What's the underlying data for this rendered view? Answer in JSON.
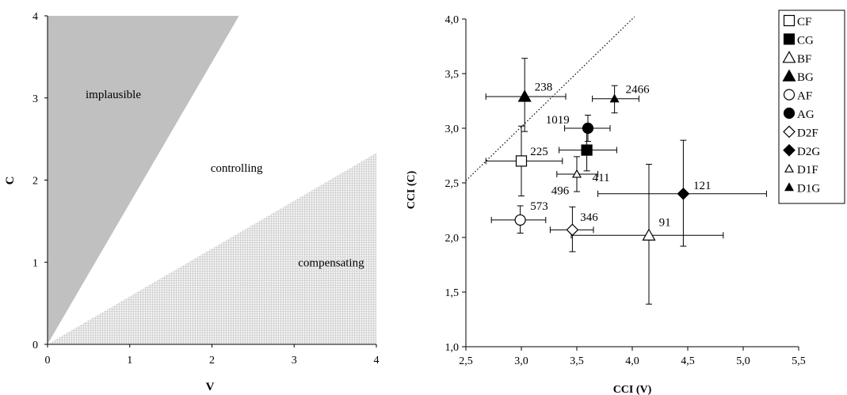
{
  "chart_data": [
    {
      "type": "area",
      "xlabel": "V",
      "ylabel": "C",
      "xlim": [
        0,
        4
      ],
      "ylim": [
        0,
        4
      ],
      "x_ticks": [
        "0",
        "1",
        "2",
        "3",
        "4"
      ],
      "y_ticks": [
        "0",
        "1",
        "2",
        "3",
        "4"
      ],
      "regions": [
        {
          "label": "implausible",
          "fill": "#c0c0c0",
          "polygon": [
            [
              0,
              0
            ],
            [
              2.33,
              4
            ],
            [
              0,
              4
            ]
          ]
        },
        {
          "label": "controlling",
          "fill": "#ffffff",
          "polygon": [
            [
              0,
              0
            ],
            [
              4,
              2.33
            ],
            [
              4,
              4
            ],
            [
              2.33,
              4
            ]
          ]
        },
        {
          "label": "compensating",
          "fill": "#e2e2e2",
          "polygon": [
            [
              0,
              0
            ],
            [
              4,
              0
            ],
            [
              4,
              2.33
            ]
          ]
        }
      ],
      "region_label_positions": [
        [
          0.8,
          3.0
        ],
        [
          2.3,
          2.1
        ],
        [
          3.45,
          0.95
        ]
      ]
    },
    {
      "type": "scatter",
      "xlabel": "CCI (V)",
      "ylabel": "CCI (C)",
      "xlim": [
        2.5,
        5.5
      ],
      "ylim": [
        1.0,
        4.0
      ],
      "x_ticks": [
        "2,5",
        "3,0",
        "3,5",
        "4,0",
        "4,5",
        "5,0",
        "5,5"
      ],
      "y_ticks": [
        "1,0",
        "1,5",
        "2,0",
        "2,5",
        "3,0",
        "3,5",
        "4,0"
      ],
      "legend_position": "top-right",
      "reference_line": {
        "style": "dotted",
        "points": [
          [
            2.5,
            2.52
          ],
          [
            4.02,
            4.02
          ]
        ]
      },
      "series": [
        {
          "name": "CF",
          "marker": "square-open",
          "x": 3.0,
          "y": 2.7,
          "xerr": [
            2.68,
            3.37
          ],
          "yerr": [
            2.38,
            3.02
          ],
          "label": "225",
          "label_pos": [
            3.08,
            2.79
          ]
        },
        {
          "name": "CG",
          "marker": "square-filled",
          "x": 3.59,
          "y": 2.8,
          "xerr": [
            3.34,
            3.86
          ],
          "yerr": [
            2.61,
            3.0
          ],
          "label": "411",
          "label_pos": [
            3.64,
            2.55
          ]
        },
        {
          "name": "BF",
          "marker": "triangle-open",
          "x": 4.15,
          "y": 2.02,
          "xerr": [
            3.45,
            4.82
          ],
          "yerr": [
            1.39,
            2.67
          ],
          "label": "91",
          "label_pos": [
            4.24,
            2.14
          ]
        },
        {
          "name": "BG",
          "marker": "triangle-filled",
          "x": 3.03,
          "y": 3.29,
          "xerr": [
            2.68,
            3.4
          ],
          "yerr": [
            2.97,
            3.64
          ],
          "label": "238",
          "label_pos": [
            3.12,
            3.38
          ]
        },
        {
          "name": "AF",
          "marker": "circle-open",
          "x": 2.99,
          "y": 2.16,
          "xerr": [
            2.73,
            3.22
          ],
          "yerr": [
            2.04,
            2.29
          ],
          "label": "573",
          "label_pos": [
            3.08,
            2.29
          ]
        },
        {
          "name": "AG",
          "marker": "circle-filled",
          "x": 3.6,
          "y": 3.0,
          "xerr": [
            3.39,
            3.8
          ],
          "yerr": [
            2.88,
            3.12
          ],
          "label": "1019",
          "label_pos": [
            3.22,
            3.08
          ]
        },
        {
          "name": "D2F",
          "marker": "diamond-open",
          "x": 3.46,
          "y": 2.07,
          "xerr": [
            3.26,
            3.65
          ],
          "yerr": [
            1.87,
            2.28
          ],
          "label": "346",
          "label_pos": [
            3.53,
            2.19
          ]
        },
        {
          "name": "D2G",
          "marker": "diamond-filled",
          "x": 4.46,
          "y": 2.4,
          "xerr": [
            3.69,
            5.21
          ],
          "yerr": [
            1.92,
            2.89
          ],
          "label": "121",
          "label_pos": [
            4.55,
            2.48
          ]
        },
        {
          "name": "D1F",
          "marker": "triangle-open-sm",
          "x": 3.5,
          "y": 2.58,
          "xerr": [
            3.32,
            3.69
          ],
          "yerr": [
            2.42,
            2.74
          ],
          "label": "496",
          "label_pos": [
            3.27,
            2.43
          ]
        },
        {
          "name": "D1G",
          "marker": "triangle-filled-sm",
          "x": 3.84,
          "y": 3.27,
          "xerr": [
            3.64,
            4.06
          ],
          "yerr": [
            3.14,
            3.39
          ],
          "label": "2466",
          "label_pos": [
            3.94,
            3.36
          ]
        }
      ]
    }
  ]
}
